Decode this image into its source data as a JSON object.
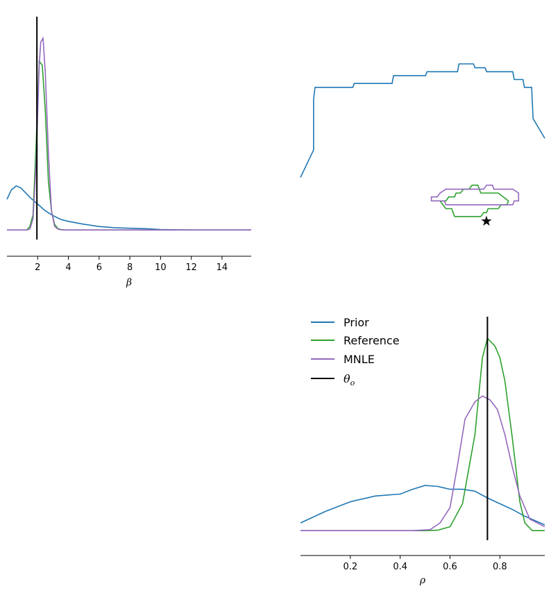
{
  "colors": {
    "prior": "#1f77b4",
    "reference": "#2ca02c",
    "mnle": "#9467bd",
    "truth": "#000000",
    "axis": "#000000"
  },
  "legend": {
    "prior": "Prior",
    "reference": "Reference",
    "mnle": "MNLE",
    "truth_symbol": "θ",
    "truth_subscript": "o",
    "placement": "upper-left of bottom-right panel"
  },
  "chart_data": [
    {
      "panel": "beta-marginal",
      "type": "line",
      "xlabel": "β",
      "xlim": [
        0,
        15.9
      ],
      "xticks": [
        2,
        4,
        6,
        8,
        10,
        12,
        14
      ],
      "xtick_labels": [
        "2",
        "4",
        "6",
        "8",
        "10",
        "12",
        "14"
      ],
      "ylim": [
        -0.05,
        1.12
      ],
      "grid": false,
      "truth": 1.95,
      "series": [
        {
          "name": "Prior",
          "x": [
            0,
            0.3,
            0.6,
            0.9,
            1.2,
            1.5,
            2.0,
            2.5,
            3.0,
            3.5,
            4.0,
            5.0,
            6.0,
            7.0,
            8.0,
            9.0,
            10.0,
            12.0,
            14.0,
            15.9
          ],
          "y": [
            0.16,
            0.21,
            0.23,
            0.22,
            0.195,
            0.17,
            0.135,
            0.1,
            0.075,
            0.055,
            0.045,
            0.03,
            0.018,
            0.012,
            0.009,
            0.007,
            0.002,
            0.0,
            0.0,
            0.0
          ]
        },
        {
          "name": "Reference",
          "x": [
            0,
            1.3,
            1.5,
            1.7,
            1.9,
            2.1,
            2.3,
            2.5,
            2.7,
            2.9,
            3.1,
            3.3,
            3.5,
            3.8,
            5,
            15.9
          ],
          "y": [
            0,
            0,
            0.02,
            0.08,
            0.45,
            0.88,
            0.86,
            0.62,
            0.25,
            0.1,
            0.03,
            0.008,
            0.002,
            0,
            0,
            0
          ]
        },
        {
          "name": "MNLE",
          "x": [
            0,
            1.3,
            1.5,
            1.7,
            1.9,
            2.1,
            2.2,
            2.35,
            2.5,
            2.7,
            2.9,
            3.1,
            3.3,
            3.5,
            3.8,
            5,
            15.9
          ],
          "y": [
            0,
            0,
            0.005,
            0.06,
            0.35,
            0.86,
            0.98,
            1.0,
            0.82,
            0.4,
            0.1,
            0.02,
            0.005,
            0.001,
            0,
            0,
            0
          ]
        }
      ]
    },
    {
      "panel": "joint-beta-rho",
      "type": "line",
      "truth": [
        1.95,
        0.75
      ],
      "series": [
        {
          "name": "Prior",
          "x": [
            0.0,
            0.9,
            0.9,
            1.0,
            3.6,
            3.7,
            6.3,
            6.4,
            8.6,
            8.7,
            10.8,
            10.9,
            11.9,
            12.0,
            12.7,
            12.8,
            14.6,
            14.7,
            15.3,
            15.4,
            15.9,
            16.0,
            16.8
          ],
          "y": [
            0.85,
            0.92,
            1.05,
            1.08,
            1.08,
            1.09,
            1.09,
            1.11,
            1.11,
            1.12,
            1.12,
            1.14,
            1.14,
            1.13,
            1.13,
            1.12,
            1.12,
            1.1,
            1.1,
            1.08,
            1.08,
            1.0,
            0.95
          ]
        },
        {
          "name": "Reference",
          "x": [
            9.6,
            10.0,
            10.2,
            10.6,
            10.7,
            11.0,
            11.2,
            11.6,
            11.8,
            12.2,
            12.4,
            12.8,
            13.4,
            13.6,
            14.3,
            14.2,
            13.8,
            13.6,
            12.9,
            12.8,
            12.6,
            12.4,
            11.8,
            11.7,
            11.0,
            10.9,
            10.6,
            10.4,
            10.0,
            9.6
          ],
          "y": [
            0.79,
            0.79,
            0.8,
            0.8,
            0.81,
            0.81,
            0.82,
            0.82,
            0.83,
            0.83,
            0.81,
            0.81,
            0.81,
            0.81,
            0.79,
            0.78,
            0.78,
            0.77,
            0.77,
            0.76,
            0.76,
            0.75,
            0.75,
            0.75,
            0.75,
            0.75,
            0.75,
            0.77,
            0.77,
            0.79
          ]
        },
        {
          "name": "MNLE",
          "x": [
            9.0,
            9.0,
            9.4,
            9.6,
            10.0,
            12.6,
            12.8,
            13.2,
            13.3,
            14.6,
            15.0,
            15.0,
            14.7,
            14.6,
            10.0,
            9.9,
            9.4,
            9.0
          ],
          "y": [
            0.79,
            0.8,
            0.8,
            0.81,
            0.82,
            0.82,
            0.83,
            0.83,
            0.82,
            0.82,
            0.81,
            0.79,
            0.79,
            0.78,
            0.78,
            0.79,
            0.79,
            0.79
          ]
        }
      ]
    },
    {
      "panel": "rho-marginal",
      "type": "line",
      "xlabel": "ρ",
      "xlim": [
        0.0,
        0.98
      ],
      "xticks": [
        0.2,
        0.4,
        0.6,
        0.8
      ],
      "xtick_labels": [
        "0.2",
        "0.4",
        "0.6",
        "0.8"
      ],
      "ylim": [
        -0.05,
        1.12
      ],
      "grid": false,
      "truth": 0.75,
      "series": [
        {
          "name": "Prior",
          "x": [
            0.0,
            0.1,
            0.2,
            0.3,
            0.4,
            0.45,
            0.5,
            0.55,
            0.6,
            0.65,
            0.7,
            0.75,
            0.8,
            0.85,
            0.9,
            0.98
          ],
          "y": [
            0.04,
            0.1,
            0.15,
            0.18,
            0.19,
            0.215,
            0.235,
            0.23,
            0.215,
            0.215,
            0.205,
            0.17,
            0.14,
            0.11,
            0.075,
            0.03
          ]
        },
        {
          "name": "Reference",
          "x": [
            0.0,
            0.5,
            0.55,
            0.6,
            0.65,
            0.7,
            0.73,
            0.75,
            0.78,
            0.8,
            0.82,
            0.85,
            0.88,
            0.9,
            0.93,
            0.98
          ],
          "y": [
            0,
            0,
            0.002,
            0.02,
            0.14,
            0.5,
            0.9,
            1.0,
            0.96,
            0.9,
            0.78,
            0.48,
            0.15,
            0.04,
            0,
            0
          ]
        },
        {
          "name": "MNLE",
          "x": [
            0.0,
            0.45,
            0.52,
            0.56,
            0.6,
            0.63,
            0.66,
            0.7,
            0.73,
            0.76,
            0.79,
            0.82,
            0.85,
            0.88,
            0.92,
            0.98
          ],
          "y": [
            0,
            0,
            0.005,
            0.04,
            0.12,
            0.34,
            0.58,
            0.67,
            0.7,
            0.68,
            0.63,
            0.5,
            0.33,
            0.18,
            0.06,
            0.02
          ]
        }
      ]
    }
  ]
}
